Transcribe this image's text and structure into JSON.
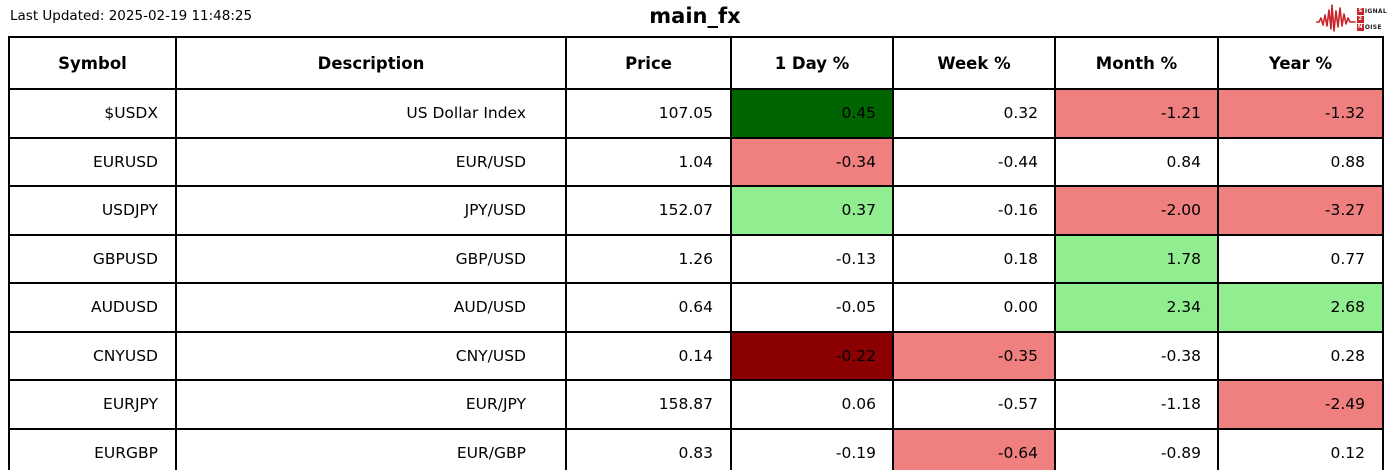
{
  "header": {
    "last_updated": "Last Updated: 2025-02-19 11:48:25",
    "title": "main_fx",
    "logo": {
      "line1_box": "S",
      "line1_rest": "IGNAL",
      "line2_box": "2",
      "line2_rest": "",
      "line3_box": "N",
      "line3_rest": "OISE"
    }
  },
  "colors": {
    "strong_up": "#006400",
    "up": "#90EE90",
    "down": "#F08080",
    "strong_down": "#8B0000",
    "logo_red": "#C8242A",
    "table_border": "#000000"
  },
  "chart_data": {
    "type": "table",
    "title": "main_fx",
    "columns": [
      "Symbol",
      "Description",
      "Price",
      "1 Day %",
      "Week %",
      "Month %",
      "Year %"
    ],
    "rows": [
      {
        "cells": [
          "$USDX",
          "US Dollar Index",
          "107.05",
          "0.45",
          "0.32",
          "-1.21",
          "-1.32"
        ],
        "bg": [
          null,
          null,
          null,
          "strong_up",
          null,
          "down",
          "down"
        ]
      },
      {
        "cells": [
          "EURUSD",
          "EUR/USD",
          "1.04",
          "-0.34",
          "-0.44",
          "0.84",
          "0.88"
        ],
        "bg": [
          null,
          null,
          null,
          "down",
          null,
          null,
          null
        ]
      },
      {
        "cells": [
          "USDJPY",
          "JPY/USD",
          "152.07",
          "0.37",
          "-0.16",
          "-2.00",
          "-3.27"
        ],
        "bg": [
          null,
          null,
          null,
          "up",
          null,
          "down",
          "down"
        ]
      },
      {
        "cells": [
          "GBPUSD",
          "GBP/USD",
          "1.26",
          "-0.13",
          "0.18",
          "1.78",
          "0.77"
        ],
        "bg": [
          null,
          null,
          null,
          null,
          null,
          "up",
          null
        ]
      },
      {
        "cells": [
          "AUDUSD",
          "AUD/USD",
          "0.64",
          "-0.05",
          "0.00",
          "2.34",
          "2.68"
        ],
        "bg": [
          null,
          null,
          null,
          null,
          null,
          "up",
          "up"
        ]
      },
      {
        "cells": [
          "CNYUSD",
          "CNY/USD",
          "0.14",
          "-0.22",
          "-0.35",
          "-0.38",
          "0.28"
        ],
        "bg": [
          null,
          null,
          null,
          "strong_down",
          "down",
          null,
          null
        ]
      },
      {
        "cells": [
          "EURJPY",
          "EUR/JPY",
          "158.87",
          "0.06",
          "-0.57",
          "-1.18",
          "-2.49"
        ],
        "bg": [
          null,
          null,
          null,
          null,
          null,
          null,
          "down"
        ]
      },
      {
        "cells": [
          "EURGBP",
          "EUR/GBP",
          "0.83",
          "-0.19",
          "-0.64",
          "-0.89",
          "0.12"
        ],
        "bg": [
          null,
          null,
          null,
          null,
          "down",
          null,
          null
        ]
      }
    ]
  }
}
